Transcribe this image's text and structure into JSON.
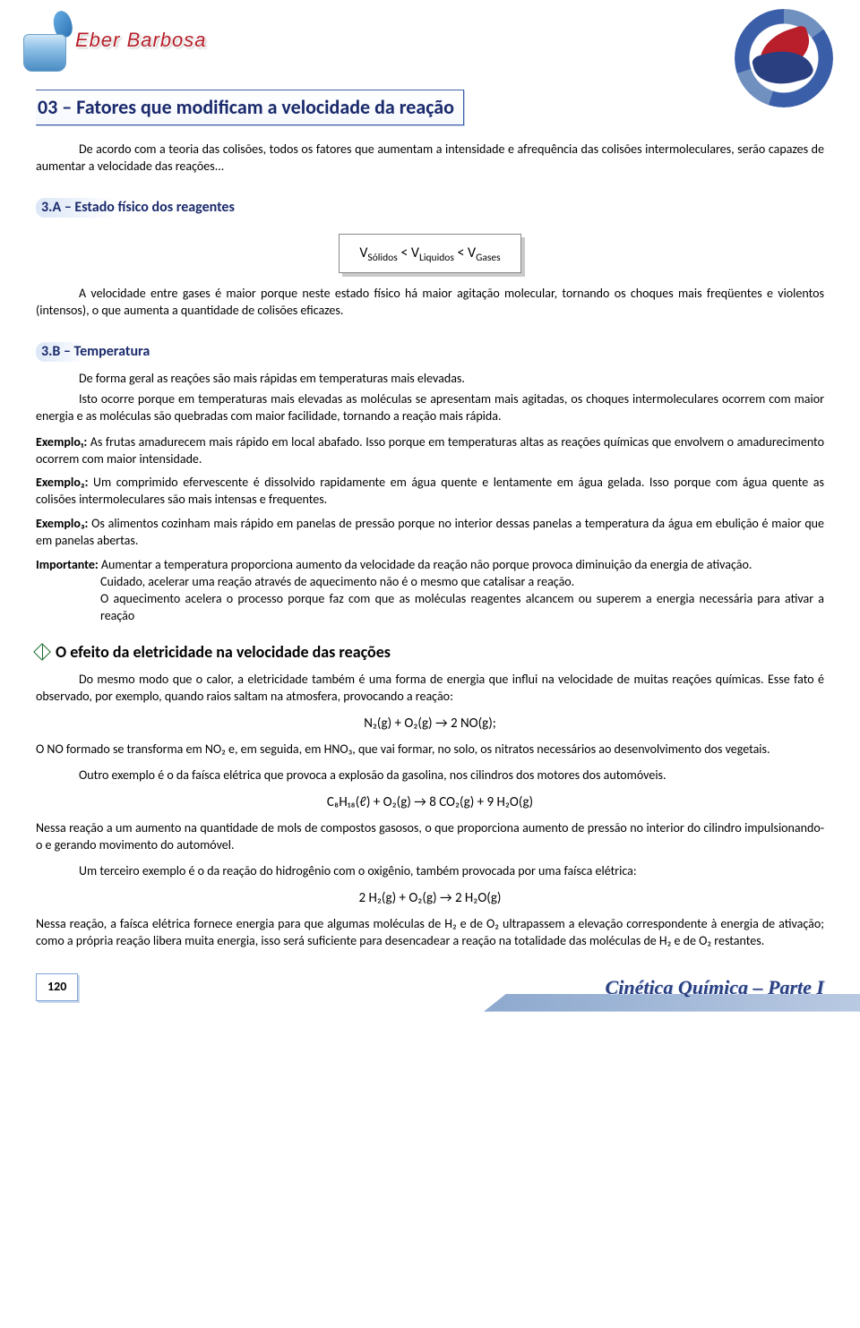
{
  "brand": {
    "name": "Eber Barbosa"
  },
  "page": {
    "number": "120",
    "footer_title": "Cinética Química – Parte I"
  },
  "main_title": "03 – Fatores que modificam a velocidade da reação",
  "intro": "De acordo com a teoria das colisões, todos os fatores que aumentam a intensidade e afrequência das colisões intermoleculares, serão capazes de aumentar a velocidade das reações...",
  "sec_a": {
    "heading": "3.A – Estado físico dos reagentes",
    "formula_html": "V<span class='subsc'>Sólidos</span>  <  V<span class='subsc'>Liquidos</span>  <  V<span class='subsc'>Gases</span>",
    "text": "A velocidade entre gases é maior porque neste estado físico há maior agitação molecular, tornando os choques mais freqüentes e violentos (intensos), o que aumenta a quantidade de colisões eficazes."
  },
  "sec_b": {
    "heading": "3.B – Temperatura",
    "lead": "De forma geral as reações são mais rápidas em temperaturas mais elevadas.",
    "para1": "Isto ocorre porque em temperaturas mais elevadas as moléculas se apresentam mais agitadas, os choques intermoleculares ocorrem com maior energia e as moléculas são quebradas com maior facilidade, tornando a reação mais rápida.",
    "ex1_label": "Exemplo₁:",
    "ex1": "As frutas amadurecem mais rápido em local abafado. Isso porque em temperaturas altas as reações químicas que envolvem o amadurecimento ocorrem com maior intensidade.",
    "ex2_label": "Exemplo₂:",
    "ex2": "Um comprimido efervescente é dissolvido rapidamente em água quente e lentamente em água gelada. Isso porque com água quente as colisões intermoleculares são mais intensas e frequentes.",
    "ex3_label": "Exemplo₃:",
    "ex3": "Os alimentos cozinham mais rápido em panelas de pressão porque no interior dessas panelas a temperatura da água em ebulição é maior que em panelas abertas.",
    "imp_label": "Importante:",
    "imp1": "Aumentar a temperatura proporciona aumento da velocidade da reação não porque provoca diminuição da energia de ativação.",
    "imp2": "Cuidado, acelerar uma reação através de aquecimento não é o mesmo que catalisar a reação.",
    "imp3": "O aquecimento acelera o processo porque faz com que as moléculas reagentes alcancem ou superem a energia necessária para ativar a reação"
  },
  "sec_c": {
    "heading": "O efeito da eletricidade na velocidade das reações",
    "p1": "Do mesmo modo que o calor, a eletricidade também é uma forma de energia que influi na velocidade de muitas reações químicas. Esse fato é observado, por exemplo, quando raios saltam na atmosfera, provocando a reação:",
    "eq1": "N₂(g)    +    O₂(g)    →    2 NO(g);",
    "p2": "O NO formado se transforma em NO₂ e, em seguida, em HNO₃, que vai formar, no solo, os nitratos necessários ao desenvolvimento dos vegetais.",
    "p3": "Outro exemplo é o da faísca elétrica que provoca a explosão da gasolina, nos cilindros dos motores dos automóveis.",
    "eq2": "C₈H₁₈(ℓ)   +   O₂(g)    →    8 CO₂(g)   +    9 H₂O(g)",
    "p4": "Nessa reação a um aumento na quantidade de mols de compostos gasosos, o que proporciona aumento de pressão no interior do cilindro impulsionando-o e gerando movimento do automóvel.",
    "p5": "Um terceiro exemplo é o da reação do hidrogênio com o oxigênio, também provocada por uma faísca elétrica:",
    "eq3": "2 H₂(g)   +    O₂(g)   →   2 H₂O(g)",
    "p6": "Nessa reação, a faísca elétrica fornece energia para que algumas moléculas de H₂ e de O₂ ultrapassem a elevação correspondente à energia de ativação; como a própria reação libera muita energia, isso será suficiente para desencadear a reação na totalidade das moléculas de H₂ e de O₂ restantes."
  }
}
